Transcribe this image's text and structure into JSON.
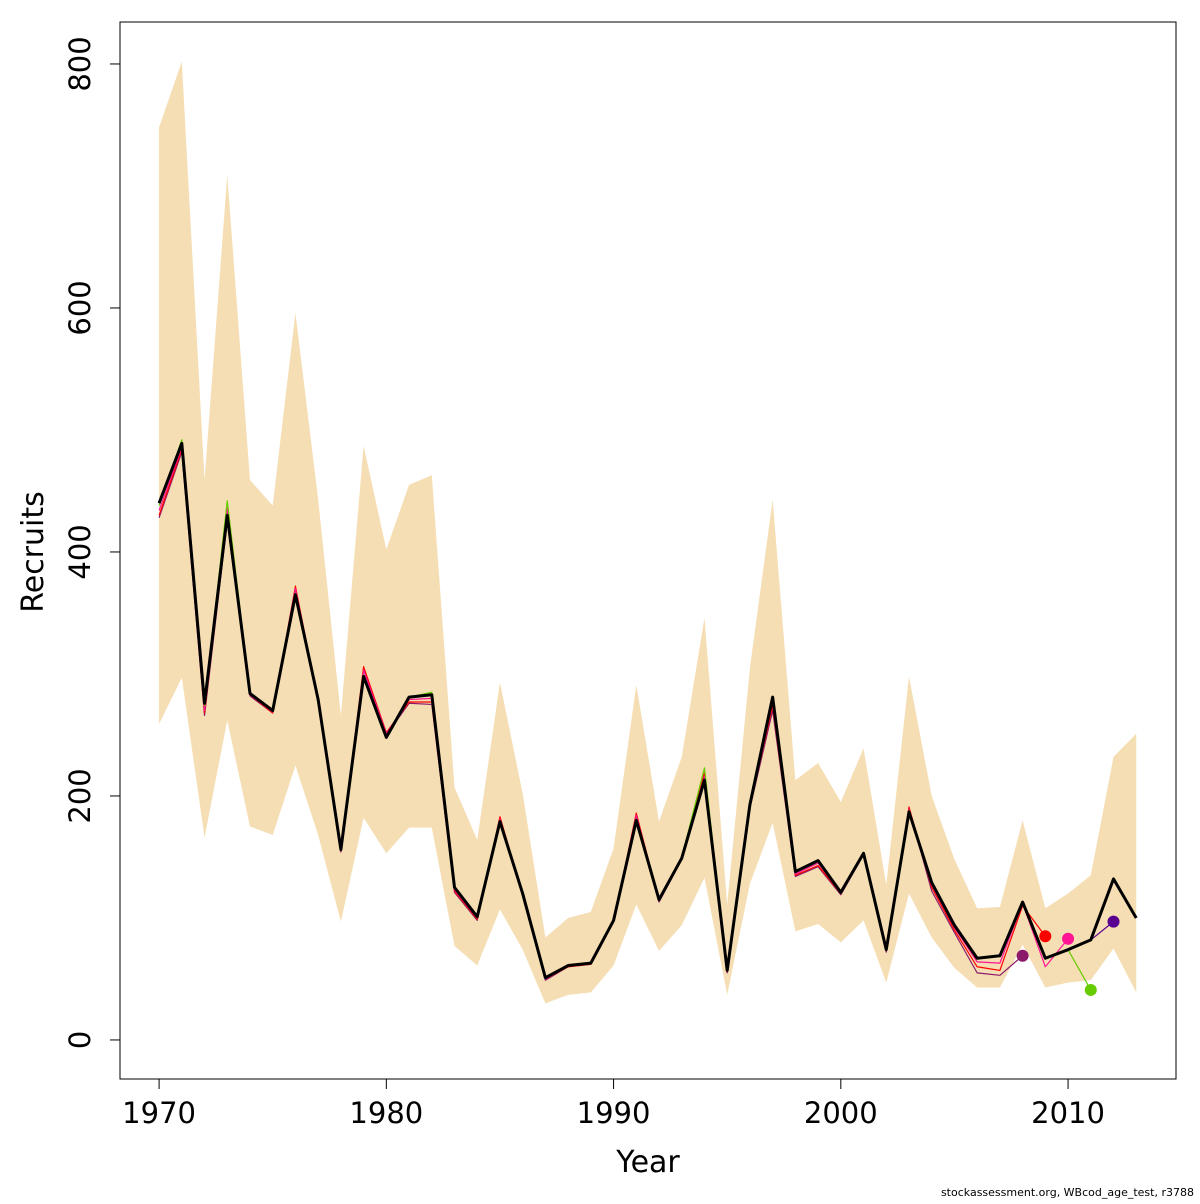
{
  "chart_data": {
    "type": "line",
    "xlabel": "Year",
    "ylabel": "Recruits",
    "footer": "stockassessment.org, WBcod_age_test, r3788",
    "x": [
      1970,
      1971,
      1972,
      1973,
      1974,
      1975,
      1976,
      1977,
      1978,
      1979,
      1980,
      1981,
      1982,
      1983,
      1984,
      1985,
      1986,
      1987,
      1988,
      1989,
      1990,
      1991,
      1992,
      1993,
      1994,
      1995,
      1996,
      1997,
      1998,
      1999,
      2000,
      2001,
      2002,
      2003,
      2004,
      2005,
      2006,
      2007,
      2008,
      2009,
      2010,
      2011,
      2012,
      2013
    ],
    "xlim": [
      1968.28,
      2014.75
    ],
    "ylim": [
      -32,
      834.4
    ],
    "xticks": [
      1970,
      1980,
      1990,
      2000,
      2010
    ],
    "yticks": [
      0,
      200,
      400,
      600,
      800
    ],
    "band": {
      "color": "#f5deb3",
      "upper": [
        748,
        802,
        459,
        709,
        459,
        438,
        596,
        443,
        266,
        487,
        402,
        455,
        463,
        207,
        164,
        293,
        202,
        84,
        100,
        105,
        157,
        291,
        179,
        232,
        346,
        111,
        305,
        443,
        213,
        227,
        195,
        239,
        127,
        298,
        200,
        148,
        108,
        109,
        180,
        108,
        120,
        135,
        232,
        251
      ],
      "lower": [
        259,
        297,
        166,
        262,
        175,
        168,
        225,
        168,
        97,
        182,
        153,
        174,
        174,
        77,
        61,
        107,
        74,
        30,
        37,
        39,
        61,
        111,
        73,
        94,
        133,
        37,
        128,
        178,
        89,
        95,
        80,
        98,
        47,
        120,
        84,
        59,
        43,
        43,
        78,
        43,
        47,
        49,
        75,
        39
      ]
    },
    "series": [
      {
        "color": "#000000",
        "end_marker": false,
        "values": [
          440,
          489,
          276,
          430,
          284,
          270,
          365,
          279,
          156,
          298,
          248,
          281,
          283,
          125,
          101,
          179,
          120,
          51,
          61,
          63,
          98,
          180,
          115,
          149,
          213,
          57,
          193,
          281,
          138,
          147,
          121,
          153,
          74,
          187,
          129,
          94,
          67,
          69,
          113,
          67,
          74,
          82,
          132,
          100
        ]
      },
      {
        "color": "#8b1a6b",
        "end_marker": true,
        "values": [
          428,
          482,
          266,
          425,
          282,
          268,
          370,
          276,
          154,
          304,
          250,
          276,
          275,
          121,
          98,
          182,
          118,
          49,
          60,
          62,
          97,
          185,
          113,
          148,
          218,
          55,
          190,
          270,
          134,
          142,
          119,
          152,
          72,
          190,
          122,
          88,
          55,
          53,
          69,
          null,
          null,
          null,
          null,
          null
        ]
      },
      {
        "color": "#ff0000",
        "end_marker": true,
        "values": [
          430,
          484,
          268,
          432,
          283,
          268,
          372,
          277,
          155,
          306,
          252,
          277,
          277,
          122,
          99,
          183,
          119,
          50,
          60,
          62,
          97,
          186,
          114,
          149,
          219,
          56,
          192,
          274,
          135,
          143,
          120,
          153,
          73,
          191,
          125,
          90,
          60,
          57,
          110,
          85,
          null,
          null,
          null,
          null
        ]
      },
      {
        "color": "#ff1493",
        "end_marker": true,
        "values": [
          434,
          486,
          270,
          436,
          283,
          269,
          370,
          278,
          156,
          303,
          251,
          279,
          280,
          123,
          100,
          181,
          119,
          50,
          61,
          63,
          98,
          184,
          114,
          149,
          216,
          56,
          193,
          277,
          136,
          145,
          121,
          153,
          73,
          189,
          127,
          92,
          64,
          63,
          112,
          60,
          83,
          null,
          null,
          null
        ]
      },
      {
        "color": "#66cc00",
        "end_marker": true,
        "values": [
          438,
          492,
          274,
          442,
          284,
          270,
          366,
          279,
          156,
          299,
          249,
          281,
          285,
          125,
          101,
          179,
          120,
          51,
          61,
          63,
          98,
          181,
          115,
          150,
          223,
          57,
          194,
          280,
          138,
          147,
          121,
          154,
          74,
          188,
          129,
          94,
          67,
          69,
          113,
          67,
          74,
          41,
          null,
          null
        ]
      },
      {
        "color": "#5a0090",
        "end_marker": true,
        "values": [
          440,
          489,
          276,
          430,
          284,
          270,
          365,
          279,
          156,
          298,
          248,
          281,
          283,
          125,
          101,
          179,
          120,
          51,
          61,
          63,
          98,
          180,
          115,
          149,
          213,
          57,
          193,
          281,
          138,
          147,
          121,
          153,
          74,
          187,
          129,
          94,
          67,
          69,
          113,
          67,
          74,
          82,
          97,
          null
        ]
      }
    ]
  }
}
